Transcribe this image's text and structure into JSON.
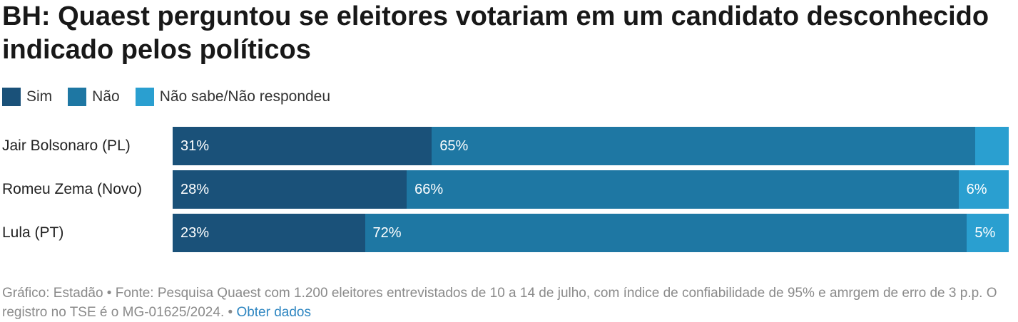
{
  "title": "BH: Quaest perguntou se eleitores votariam em um candidato desconhecido indicado pelos políticos",
  "colors": {
    "sim": "#1a5179",
    "nao": "#1e77a3",
    "ns": "#2a9fd0"
  },
  "footer": {
    "text": "Gráfico: Estadão • Fonte: Pesquisa Quaest com 1.200 eleitores entrevistados de 10 a 14 de julho, com índice de confiabilidade de 95% e amrgem de erro de 3 p.p. O registro no TSE é o MG-01625/2024. • ",
    "link": "Obter dados"
  },
  "chart_data": {
    "type": "bar",
    "orientation": "horizontal",
    "stacked": "100%",
    "categories": [
      "Jair Bolsonaro (PL)",
      "Romeu Zema (Novo)",
      "Lula (PT)"
    ],
    "series": [
      {
        "name": "Sim",
        "values": [
          31,
          28,
          23
        ],
        "labels": [
          "31%",
          "28%",
          "23%"
        ]
      },
      {
        "name": "Não",
        "values": [
          65,
          66,
          72
        ],
        "labels": [
          "65%",
          "66%",
          "72%"
        ]
      },
      {
        "name": "Não sabe/Não respondeu",
        "values": [
          4,
          6,
          5
        ],
        "labels": [
          "",
          "6%",
          "5%"
        ]
      }
    ],
    "legend": "top-left"
  }
}
